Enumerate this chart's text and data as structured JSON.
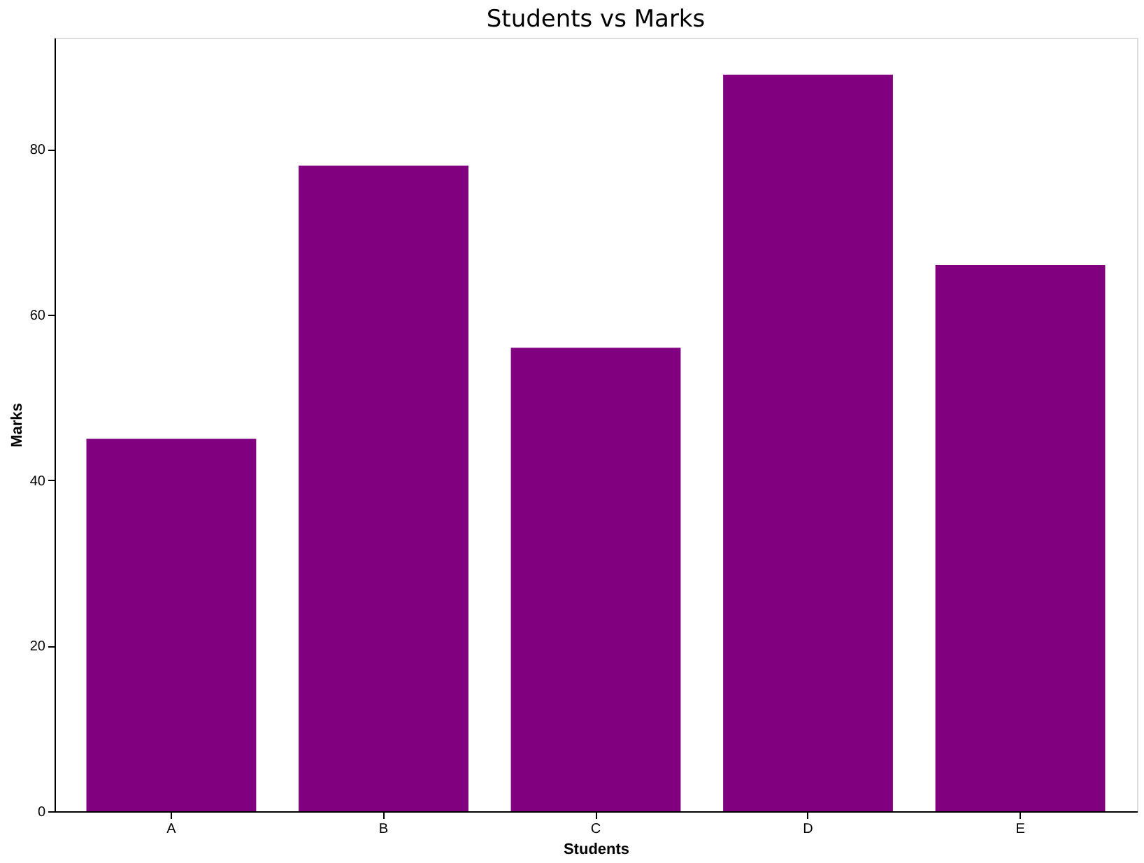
{
  "chart_data": {
    "type": "bar",
    "title": "Students vs Marks",
    "xlabel": "Students",
    "ylabel": "Marks",
    "categories": [
      "A",
      "B",
      "C",
      "D",
      "E"
    ],
    "values": [
      45,
      78,
      56,
      89,
      66
    ],
    "color": "#800080",
    "ylim": [
      0,
      93.45
    ],
    "yticks": [
      0,
      20,
      40,
      60,
      80
    ],
    "grid": false
  }
}
